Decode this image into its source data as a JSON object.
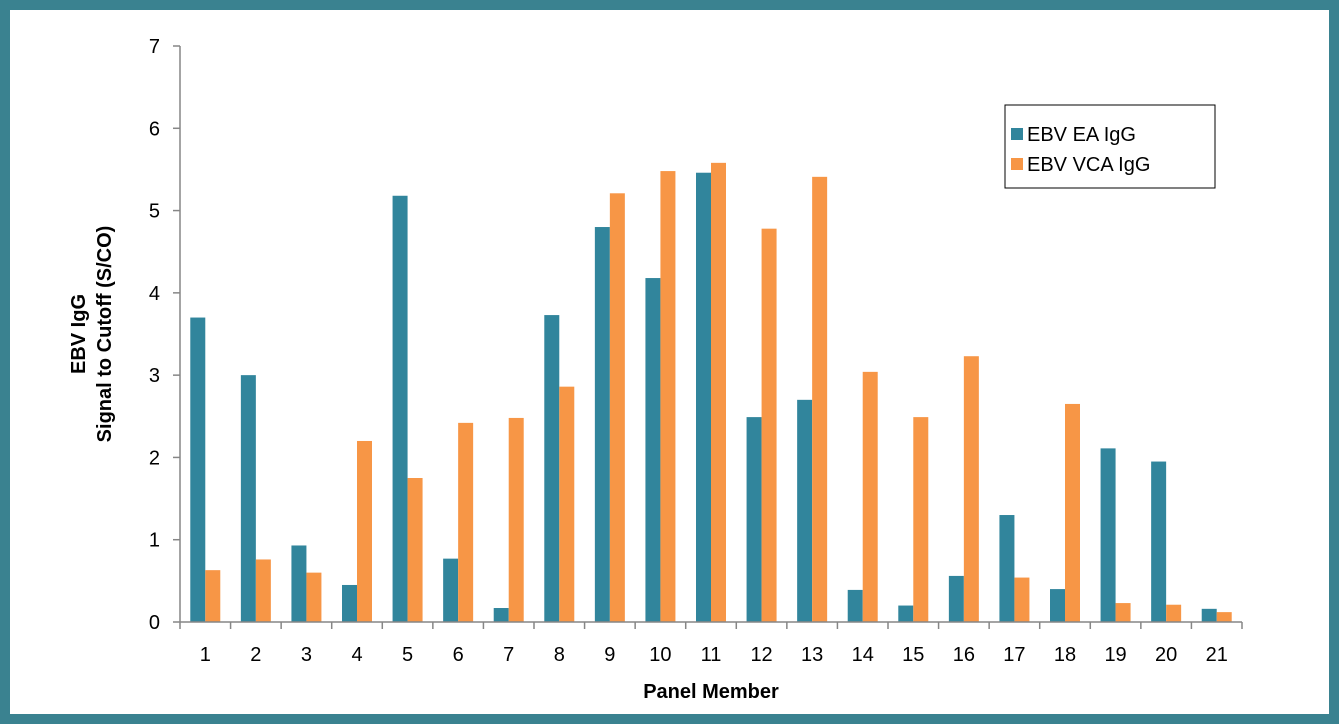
{
  "chart_data": {
    "type": "bar",
    "title": "",
    "xlabel": "Panel Member",
    "ylabel_lines": [
      "EBV IgG",
      "Signal to Cutoff (S/CO)"
    ],
    "ylim": [
      0,
      7
    ],
    "yticks": [
      "0",
      "1",
      "2",
      "3",
      "4",
      "5",
      "6",
      "7"
    ],
    "categories": [
      "1",
      "2",
      "3",
      "4",
      "5",
      "6",
      "7",
      "8",
      "9",
      "10",
      "11",
      "12",
      "13",
      "14",
      "15",
      "16",
      "17",
      "18",
      "19",
      "20",
      "21"
    ],
    "series": [
      {
        "name": "EBV EA IgG",
        "color": "#31859c",
        "values": [
          3.7,
          3.0,
          0.93,
          0.45,
          5.18,
          0.77,
          0.17,
          3.73,
          4.8,
          4.18,
          5.46,
          2.49,
          2.7,
          0.39,
          0.2,
          0.56,
          1.3,
          0.4,
          2.11,
          1.95,
          0.16
        ]
      },
      {
        "name": "EBV VCA IgG",
        "color": "#f79646",
        "values": [
          0.63,
          0.76,
          0.6,
          2.2,
          1.75,
          2.42,
          2.48,
          2.86,
          5.21,
          5.48,
          5.58,
          4.78,
          5.41,
          3.04,
          2.49,
          3.23,
          0.54,
          2.65,
          0.23,
          0.21,
          0.12
        ]
      }
    ],
    "legend_position": "top-right",
    "grid": false
  }
}
